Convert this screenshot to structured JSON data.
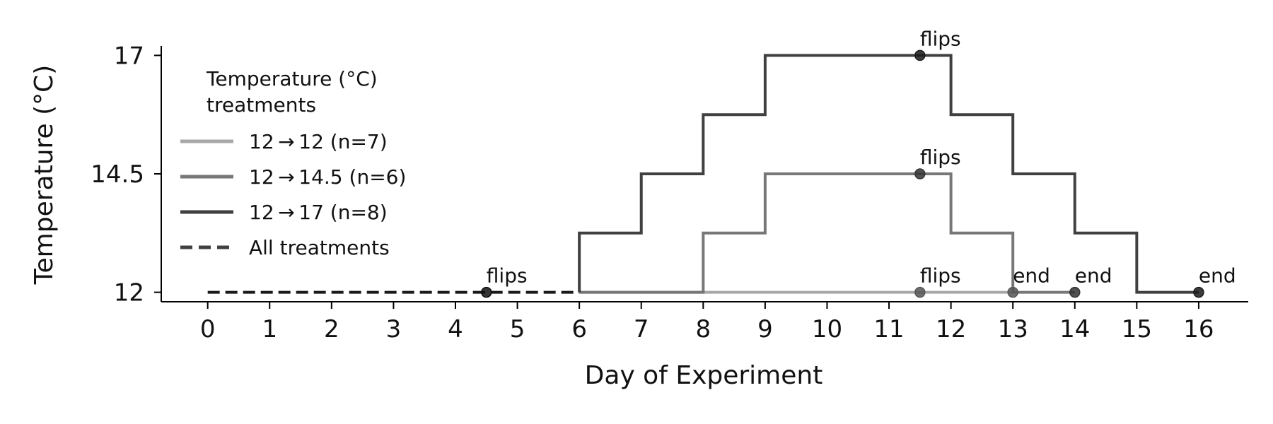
{
  "chart_data": {
    "type": "line",
    "xlabel": "Day of Experiment",
    "ylabel": "Temperature (°C)",
    "xlim": [
      -0.75,
      16.8
    ],
    "ylim": [
      11.8,
      17.2
    ],
    "x_ticks": [
      0,
      1,
      2,
      3,
      4,
      5,
      6,
      7,
      8,
      9,
      10,
      11,
      12,
      13,
      14,
      15,
      16
    ],
    "y_ticks": [
      12,
      14.5,
      17
    ],
    "y_tick_labels": [
      "12",
      "14.5",
      "17"
    ],
    "grid": false,
    "legend": {
      "title_lines": [
        "Temperature (°C)",
        "treatments"
      ],
      "position": "upper-left",
      "entries": [
        {
          "label": "12 → 12 (n=7)",
          "color": "#a8a8a8",
          "dash": "solid"
        },
        {
          "label": "12 → 14.5 (n=6)",
          "color": "#777777",
          "dash": "solid"
        },
        {
          "label": "12 → 17 (n=8)",
          "color": "#404040",
          "dash": "solid"
        },
        {
          "label": "All treatments",
          "color": "#404040",
          "dash": "dashed"
        }
      ]
    },
    "series": [
      {
        "color": "#1a1a1a",
        "dash": "dashed",
        "x": [
          0,
          6
        ],
        "y": [
          12,
          12
        ]
      },
      {
        "color": "#a8a8a8",
        "dash": "solid",
        "x": [
          6,
          13
        ],
        "y": [
          12,
          12
        ]
      },
      {
        "color": "#777777",
        "dash": "solid",
        "x": [
          6,
          8,
          8,
          9,
          9,
          12,
          12,
          13,
          13,
          14
        ],
        "y": [
          12,
          12,
          13.25,
          13.25,
          14.5,
          14.5,
          13.25,
          13.25,
          12,
          12
        ]
      },
      {
        "color": "#404040",
        "dash": "solid",
        "x": [
          6,
          6,
          7,
          7,
          8,
          8,
          9,
          9,
          12,
          12,
          13,
          13,
          14,
          14,
          15,
          15,
          16
        ],
        "y": [
          12,
          13.25,
          13.25,
          14.5,
          14.5,
          15.75,
          15.75,
          17,
          17,
          15.75,
          15.75,
          14.5,
          14.5,
          13.25,
          13.25,
          12,
          12
        ]
      }
    ],
    "markers": [
      {
        "x": 4.5,
        "y": 12,
        "text": "flips",
        "color": "#111111"
      },
      {
        "x": 11.5,
        "y": 17,
        "text": "flips",
        "color": "#1a1a1a"
      },
      {
        "x": 11.5,
        "y": 14.5,
        "text": "flips",
        "color": "#333333"
      },
      {
        "x": 11.5,
        "y": 12,
        "text": "flips",
        "color": "#555555"
      },
      {
        "x": 13,
        "y": 12,
        "text": "end",
        "color": "#555555"
      },
      {
        "x": 14,
        "y": 12,
        "text": "end",
        "color": "#333333"
      },
      {
        "x": 16,
        "y": 12,
        "text": "end",
        "color": "#1a1a1a"
      }
    ]
  }
}
